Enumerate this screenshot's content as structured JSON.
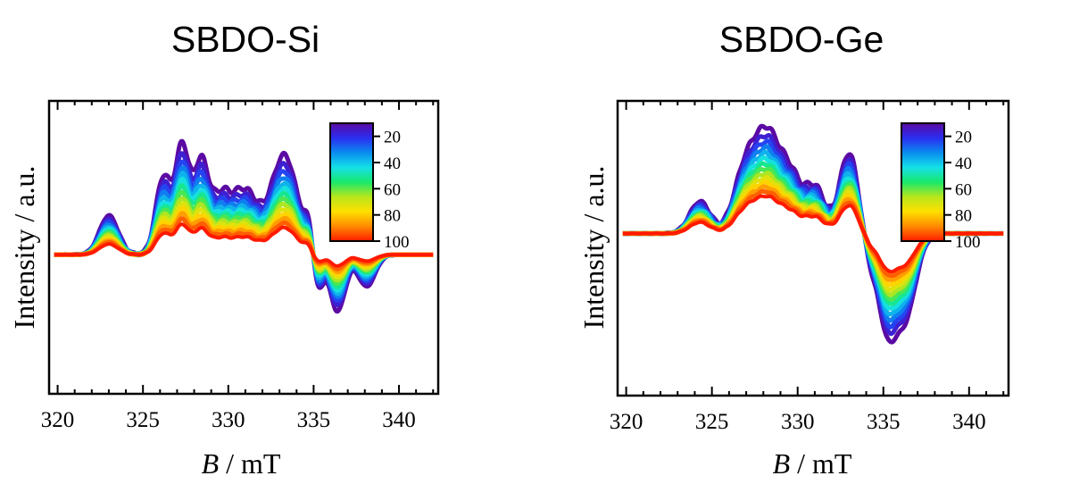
{
  "chart_data": [
    {
      "type": "line",
      "title": "SBDO-Si",
      "xlabel_var": "B",
      "xlabel_unit": " / mT",
      "ylabel": "Intensity / a.u.",
      "xlim": [
        319.5,
        342.3
      ],
      "ylim": [
        -1.0,
        1.0
      ],
      "x_ticks": [
        320,
        325,
        330,
        335,
        340
      ],
      "yticks_shown": false,
      "colorbar": {
        "ticks": [
          20,
          40,
          60,
          80,
          100
        ],
        "range": [
          10,
          100
        ],
        "colors": [
          "#5b0aa3",
          "#2a2ef0",
          "#0a8cf0",
          "#15e0e8",
          "#18e86a",
          "#b8e61c",
          "#ffe000",
          "#ff8a00",
          "#ff1a00"
        ]
      },
      "series_count": 14,
      "series_range": [
        10,
        100
      ],
      "baseline_y": 0.0,
      "profile_peaks": [
        {
          "x": 323.0,
          "amp": 0.43,
          "width": 0.55
        },
        {
          "x": 326.2,
          "amp": 0.85,
          "width": 0.45
        },
        {
          "x": 327.3,
          "amp": 1.15,
          "width": 0.4
        },
        {
          "x": 328.4,
          "amp": 1.0,
          "width": 0.45
        },
        {
          "x": 329.5,
          "amp": 0.45,
          "width": 0.5
        },
        {
          "x": 330.9,
          "amp": 0.72,
          "width": 0.9
        },
        {
          "x": 333.3,
          "amp": 1.08,
          "width": 0.75
        },
        {
          "x": 334.8,
          "amp": 0.35,
          "width": 0.3
        },
        {
          "x": 335.2,
          "amp": -0.48,
          "width": 0.3
        },
        {
          "x": 336.4,
          "amp": -0.62,
          "width": 0.45
        },
        {
          "x": 338.1,
          "amp": -0.35,
          "width": 0.5
        }
      ],
      "red_scale": 0.27,
      "red_negative_scale": 0.2
    },
    {
      "type": "line",
      "title": "SBDO-Ge",
      "xlabel_var": "B",
      "xlabel_unit": " / mT",
      "ylabel": "Intensity / a.u.",
      "xlim": [
        319.5,
        342.3
      ],
      "ylim": [
        -1.0,
        1.0
      ],
      "x_ticks": [
        320,
        325,
        330,
        335,
        340
      ],
      "yticks_shown": false,
      "colorbar": {
        "ticks": [
          20,
          40,
          60,
          80,
          100
        ],
        "range": [
          10,
          100
        ],
        "colors": [
          "#5b0aa3",
          "#2a2ef0",
          "#0a8cf0",
          "#15e0e8",
          "#18e86a",
          "#b8e61c",
          "#ffe000",
          "#ff8a00",
          "#ff1a00"
        ]
      },
      "series_count": 14,
      "series_range": [
        10,
        100
      ],
      "baseline_y": 0.25,
      "profile_peaks": [
        {
          "x": 324.3,
          "amp": 0.35,
          "width": 0.6
        },
        {
          "x": 327.0,
          "amp": 0.72,
          "width": 0.7
        },
        {
          "x": 328.3,
          "amp": 0.98,
          "width": 0.7
        },
        {
          "x": 329.6,
          "amp": 0.55,
          "width": 0.6
        },
        {
          "x": 331.0,
          "amp": 0.5,
          "width": 0.6
        },
        {
          "x": 333.0,
          "amp": 0.88,
          "width": 0.55
        },
        {
          "x": 334.3,
          "amp": -0.35,
          "width": 0.45
        },
        {
          "x": 335.2,
          "amp": -0.8,
          "width": 0.45
        },
        {
          "x": 336.2,
          "amp": -0.95,
          "width": 0.65
        }
      ],
      "red_scale": 0.35,
      "red_negative_scale": 0.35
    }
  ]
}
